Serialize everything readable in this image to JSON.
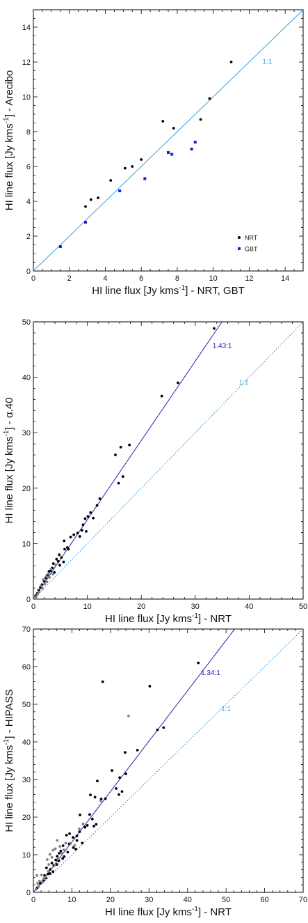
{
  "chart_data": [
    {
      "type": "scatter",
      "xlabel": "HI line flux [Jy kms",
      "xlabel_sup": "-1",
      "xlabel_suffix": "] - NRT, GBT",
      "ylabel": "HI line flux [Jy kms",
      "ylabel_sup": "-1",
      "ylabel_suffix": "] - Arecibo",
      "xlim": [
        0,
        15
      ],
      "ylim": [
        0,
        15
      ],
      "xticks": [
        "0",
        "2",
        "4",
        "6",
        "8",
        "10",
        "12",
        "14"
      ],
      "yticks": [
        "0",
        "2",
        "4",
        "6",
        "8",
        "10",
        "12",
        "14"
      ],
      "tick_values": [
        0,
        2,
        4,
        6,
        8,
        10,
        12,
        14
      ],
      "legend_position": "bottom-right",
      "lines": [
        {
          "label": "1:1",
          "slope": 1.0,
          "style": "solid",
          "color": "#3a9fe0",
          "label_at": [
            13.0,
            11.9
          ]
        }
      ],
      "series": [
        {
          "name": "NRT",
          "color": "#000000",
          "marker": "circle",
          "points": [
            [
              2.9,
              3.7
            ],
            [
              3.2,
              4.1
            ],
            [
              3.6,
              4.2
            ],
            [
              4.3,
              5.2
            ],
            [
              5.1,
              5.9
            ],
            [
              5.5,
              6.0
            ],
            [
              6.0,
              6.4
            ],
            [
              7.2,
              8.6
            ],
            [
              7.8,
              8.2
            ],
            [
              9.3,
              8.7
            ],
            [
              9.8,
              9.9
            ],
            [
              11.0,
              12.0
            ]
          ]
        },
        {
          "name": "GBT",
          "color": "#1a1adc",
          "marker": "square",
          "points": [
            [
              1.5,
              1.4
            ],
            [
              2.9,
              2.8
            ],
            [
              4.8,
              4.6
            ],
            [
              6.2,
              5.3
            ],
            [
              7.5,
              6.8
            ],
            [
              7.7,
              6.7
            ],
            [
              8.8,
              7.0
            ],
            [
              9.0,
              7.4
            ]
          ]
        }
      ]
    },
    {
      "type": "scatter",
      "xlabel": "HI line flux [Jy kms",
      "xlabel_sup": "-1",
      "xlabel_suffix": "] - NRT",
      "ylabel": "HI line flux [Jy kms",
      "ylabel_sup": "-1",
      "ylabel_suffix": "] - α.40",
      "xlim": [
        0,
        50
      ],
      "ylim": [
        0,
        50
      ],
      "xticks": [
        "0",
        "10",
        "20",
        "30",
        "40",
        "50"
      ],
      "yticks": [
        "0",
        "10",
        "20",
        "30",
        "40",
        "50"
      ],
      "tick_values": [
        0,
        10,
        20,
        30,
        40,
        50
      ],
      "lines": [
        {
          "label": "1.43:1",
          "slope": 1.43,
          "style": "solid",
          "color": "#2020b0",
          "label_at": [
            35.0,
            45.3
          ]
        },
        {
          "label": "1:1",
          "slope": 1.0,
          "style": "dotted",
          "color": "#3a9fe0",
          "label_at": [
            39.0,
            38.7
          ]
        }
      ],
      "series": [
        {
          "name": "",
          "color": "#000000",
          "marker": "circle",
          "points": [
            [
              33.5,
              48.8
            ],
            [
              26.8,
              39.0
            ],
            [
              23.8,
              36.6
            ],
            [
              17.8,
              27.8
            ],
            [
              16.2,
              27.4
            ],
            [
              15.2,
              26.0
            ],
            [
              16.6,
              22.1
            ],
            [
              15.8,
              20.9
            ],
            [
              12.3,
              18.1
            ],
            [
              11.8,
              16.9
            ],
            [
              10.6,
              15.6
            ],
            [
              10.1,
              14.9
            ],
            [
              11.1,
              14.6
            ],
            [
              9.6,
              14.5
            ],
            [
              9.2,
              13.4
            ],
            [
              9.8,
              12.2
            ],
            [
              9.0,
              12.4
            ],
            [
              8.2,
              11.9
            ],
            [
              8.6,
              11.3
            ],
            [
              7.5,
              11.6
            ],
            [
              6.9,
              11.2
            ],
            [
              5.7,
              10.5
            ],
            [
              6.3,
              9.3
            ],
            [
              5.8,
              9.0
            ],
            [
              6.5,
              9.0
            ],
            [
              4.8,
              8.0
            ],
            [
              5.2,
              7.5
            ],
            [
              4.3,
              7.2
            ],
            [
              4.6,
              6.8
            ],
            [
              5.6,
              6.7
            ],
            [
              3.7,
              6.4
            ],
            [
              4.9,
              6.1
            ],
            [
              3.5,
              5.6
            ],
            [
              3.2,
              5.1
            ],
            [
              2.9,
              5.0
            ],
            [
              3.9,
              4.8
            ],
            [
              2.6,
              4.3
            ],
            [
              2.3,
              3.8
            ],
            [
              2.0,
              3.2
            ],
            [
              1.6,
              2.6
            ],
            [
              1.3,
              2.1
            ],
            [
              1.0,
              1.6
            ],
            [
              0.7,
              1.0
            ],
            [
              0.4,
              0.6
            ]
          ]
        },
        {
          "name": "",
          "color": "#808080",
          "marker": "circle",
          "points": [
            [
              4.1,
              6.2
            ],
            [
              3.3,
              5.4
            ],
            [
              2.8,
              4.6
            ],
            [
              2.4,
              4.1
            ],
            [
              3.0,
              3.9
            ],
            [
              1.8,
              3.5
            ],
            [
              2.1,
              2.7
            ],
            [
              1.4,
              2.4
            ],
            [
              1.7,
              1.9
            ],
            [
              1.1,
              1.3
            ],
            [
              0.8,
              0.9
            ],
            [
              0.5,
              0.4
            ],
            [
              0.3,
              0.2
            ],
            [
              2.5,
              3.1
            ],
            [
              3.6,
              4.5
            ]
          ]
        }
      ]
    },
    {
      "type": "scatter",
      "xlabel": "HI line flux [Jy kms",
      "xlabel_sup": "-1",
      "xlabel_suffix": "] - NRT",
      "ylabel": "HI line flux [Jy kms",
      "ylabel_sup": "-1",
      "ylabel_suffix": "] - HIPASS",
      "xlim": [
        0,
        70
      ],
      "ylim": [
        0,
        70
      ],
      "xticks": [
        "0",
        "10",
        "20",
        "30",
        "40",
        "50",
        "60",
        "70"
      ],
      "yticks": [
        "0",
        "10",
        "20",
        "30",
        "40",
        "50",
        "60",
        "70"
      ],
      "tick_values": [
        0,
        10,
        20,
        30,
        40,
        50,
        60,
        70
      ],
      "lines": [
        {
          "label": "1.34:1",
          "slope": 1.34,
          "style": "solid",
          "color": "#2020b0",
          "label_at": [
            46.0,
            57.8
          ]
        },
        {
          "label": "1:1",
          "slope": 1.0,
          "style": "dotted",
          "color": "#3a9fe0",
          "label_at": [
            50.0,
            48.2
          ]
        }
      ],
      "series": [
        {
          "name": "",
          "color": "#000000",
          "marker": "circle",
          "points": [
            [
              42.8,
              61.0
            ],
            [
              18.0,
              56.0
            ],
            [
              30.2,
              54.8
            ],
            [
              33.8,
              43.8
            ],
            [
              32.2,
              43.2
            ],
            [
              27.0,
              37.8
            ],
            [
              23.8,
              37.2
            ],
            [
              20.4,
              32.4
            ],
            [
              24.0,
              31.5
            ],
            [
              22.4,
              30.5
            ],
            [
              16.6,
              29.6
            ],
            [
              21.5,
              27.6
            ],
            [
              23.0,
              26.8
            ],
            [
              22.2,
              26.0
            ],
            [
              14.8,
              25.9
            ],
            [
              16.0,
              25.3
            ],
            [
              18.7,
              24.9
            ],
            [
              17.6,
              24.8
            ],
            [
              12.1,
              20.6
            ],
            [
              14.6,
              20.7
            ],
            [
              15.3,
              19.5
            ],
            [
              16.3,
              18.1
            ],
            [
              15.7,
              17.6
            ],
            [
              13.4,
              17.3
            ],
            [
              14.0,
              17.8
            ],
            [
              12.0,
              16.1
            ],
            [
              11.3,
              15.0
            ],
            [
              10.3,
              14.6
            ],
            [
              9.4,
              15.6
            ],
            [
              8.6,
              15.2
            ],
            [
              11.3,
              13.8
            ],
            [
              9.3,
              12.9
            ],
            [
              7.7,
              12.4
            ],
            [
              10.4,
              11.9
            ],
            [
              11.0,
              11.5
            ],
            [
              7.1,
              11.0
            ],
            [
              8.9,
              10.7
            ],
            [
              6.7,
              10.4
            ],
            [
              6.2,
              9.6
            ],
            [
              7.6,
              9.0
            ],
            [
              5.8,
              8.6
            ],
            [
              6.6,
              8.4
            ],
            [
              4.8,
              7.8
            ],
            [
              5.3,
              7.2
            ],
            [
              3.4,
              6.5
            ],
            [
              4.4,
              6.1
            ],
            [
              5.1,
              5.5
            ],
            [
              3.8,
              4.9
            ],
            [
              2.9,
              4.5
            ],
            [
              3.3,
              3.8
            ],
            [
              2.7,
              3.2
            ],
            [
              1.8,
              2.4
            ],
            [
              1.0,
              1.2
            ],
            [
              4.3,
              5.0
            ],
            [
              6.1,
              7.4
            ],
            [
              8.0,
              9.5
            ],
            [
              12.7,
              13.1
            ]
          ]
        },
        {
          "name": "",
          "color": "#808080",
          "marker": "circle",
          "points": [
            [
              24.7,
              46.9
            ],
            [
              17.5,
              24.3
            ],
            [
              12.9,
              18.2
            ],
            [
              11.9,
              16.9
            ],
            [
              6.2,
              13.8
            ],
            [
              6.9,
              12.2
            ],
            [
              5.7,
              11.6
            ],
            [
              5.1,
              11.2
            ],
            [
              4.3,
              10.1
            ],
            [
              7.4,
              10.4
            ],
            [
              8.4,
              13.1
            ],
            [
              3.6,
              8.7
            ],
            [
              4.0,
              7.4
            ],
            [
              2.1,
              4.6
            ],
            [
              2.7,
              3.7
            ],
            [
              3.2,
              4.1
            ],
            [
              1.6,
              3.0
            ],
            [
              1.3,
              1.5
            ],
            [
              0.7,
              0.8
            ],
            [
              5.6,
              7.3
            ],
            [
              6.4,
              8.9
            ],
            [
              9.7,
              13.0
            ],
            [
              10.7,
              12.5
            ],
            [
              7.9,
              11.3
            ],
            [
              4.8,
              9.3
            ],
            [
              3.9,
              5.6
            ],
            [
              2.4,
              2.7
            ],
            [
              1.1,
              2.4
            ],
            [
              0.9,
              4.5
            ]
          ]
        }
      ]
    }
  ]
}
